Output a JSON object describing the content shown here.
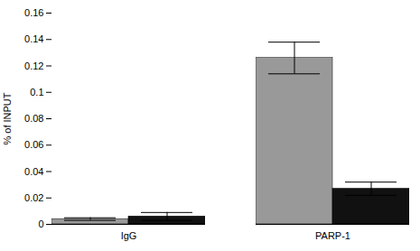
{
  "chart_data": {
    "type": "bar",
    "categories": [
      "IgG",
      "PARP-1"
    ],
    "series": [
      {
        "color": "#999999",
        "values": [
          0.004,
          0.126
        ],
        "errors": [
          0.001,
          0.012
        ]
      },
      {
        "color": "#111111",
        "values": [
          0.006,
          0.027
        ],
        "errors": [
          0.003,
          0.005
        ]
      }
    ],
    "ylabel": "% of INPUT",
    "ylim": [
      0,
      0.16
    ],
    "yticks": [
      0,
      0.02,
      0.04,
      0.06,
      0.08,
      0.1,
      0.12,
      0.14,
      0.16
    ],
    "grid": false
  }
}
